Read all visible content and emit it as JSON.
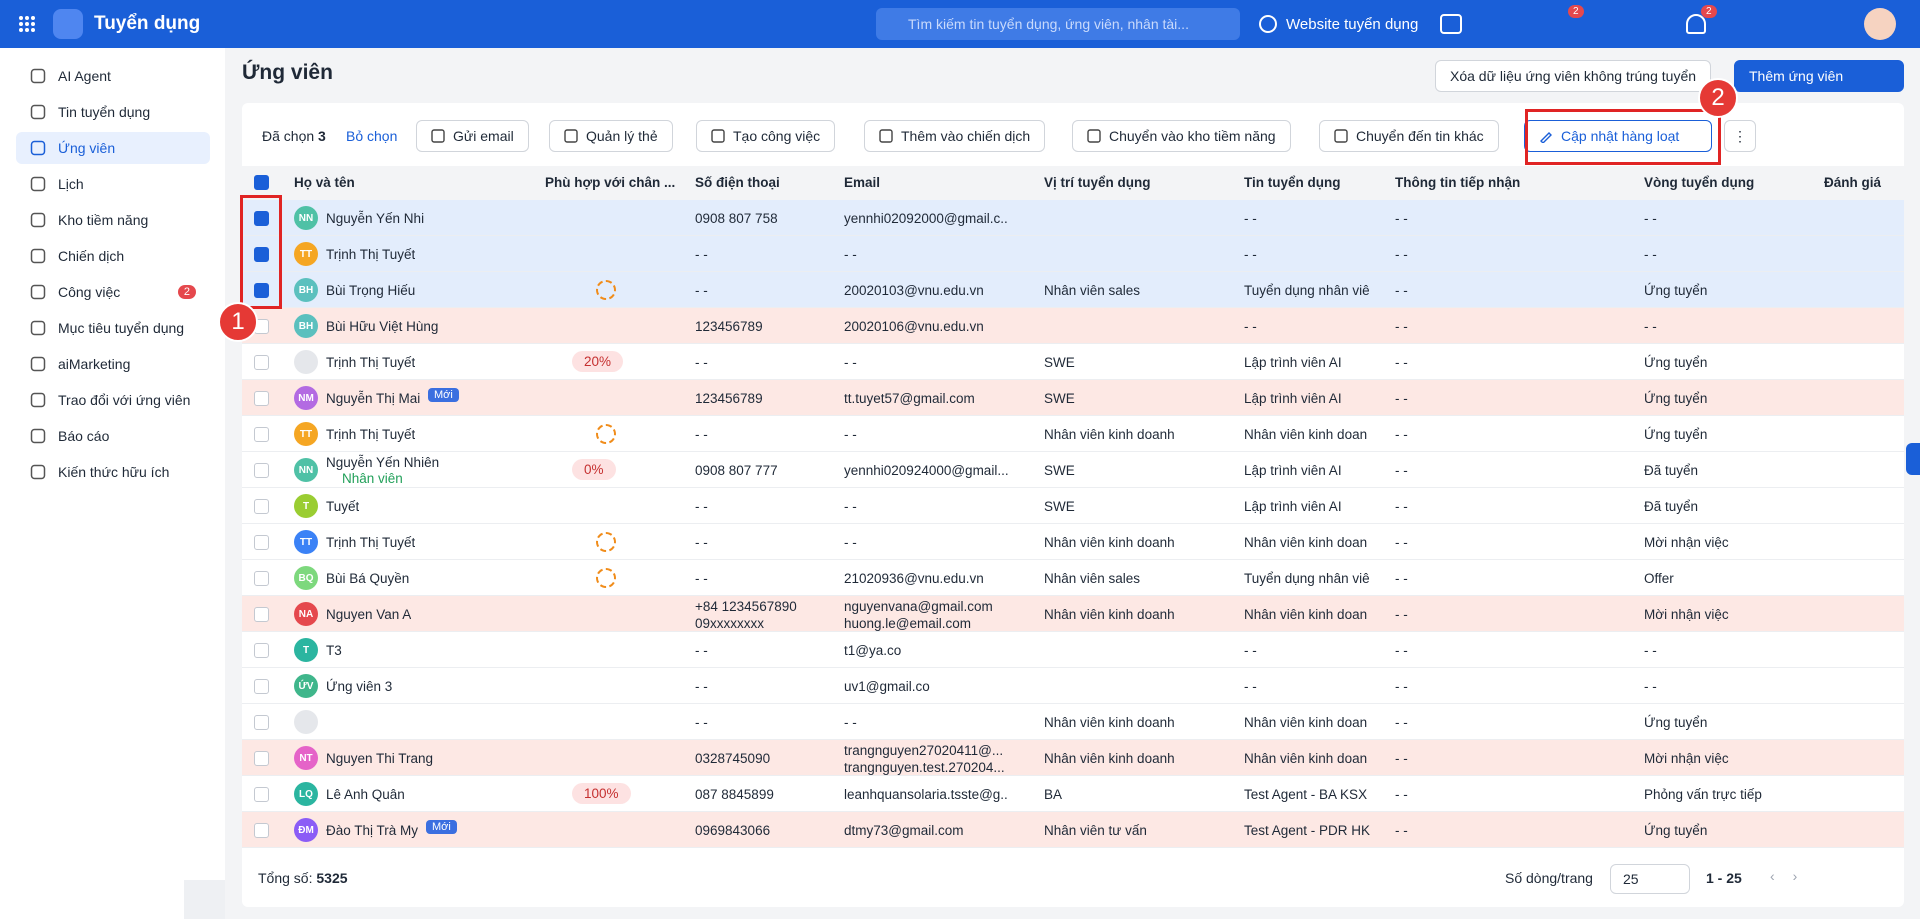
{
  "header": {
    "app_name": "Tuyển dụng",
    "search_placeholder": "Tìm kiếm tin tuyển dụng, ứng viên, nhân tài...",
    "website": "Website tuyển dụng",
    "cart_badge": "2",
    "notif_badge": "2"
  },
  "sidebar": {
    "items": [
      {
        "label": "AI Agent"
      },
      {
        "label": "Tin tuyển dụng"
      },
      {
        "label": "Ứng viên",
        "active": true
      },
      {
        "label": "Lịch"
      },
      {
        "label": "Kho tiềm năng"
      },
      {
        "label": "Chiến dịch"
      },
      {
        "label": "Công việc",
        "badge": "2"
      },
      {
        "label": "Mục tiêu tuyển dụng"
      },
      {
        "label": "aiMarketing"
      },
      {
        "label": "Trao đổi với ứng viên"
      },
      {
        "label": "Báo cáo"
      },
      {
        "label": "Kiến thức hữu ích"
      }
    ]
  },
  "page": {
    "title": "Ứng viên",
    "clear_button": "Xóa dữ liệu ứng viên không trúng tuyển",
    "add_button": "Thêm ứng viên"
  },
  "toolbar": {
    "selected_label": "Đã chọn",
    "selected_count": "3",
    "deselect": "Bỏ chọn",
    "actions": [
      "Gửi email",
      "Quản lý thẻ",
      "Tạo công việc",
      "Thêm vào chiến dịch",
      "Chuyển vào kho tiềm năng",
      "Chuyển đến tin khác"
    ],
    "bulk_update": "Cập nhật hàng loạt"
  },
  "annotations": [
    "1",
    "2"
  ],
  "table": {
    "columns": [
      "Họ và tên",
      "Phù hợp với chân ...",
      "Số điện thoại",
      "Email",
      "Vị trí tuyển dụng",
      "Tin tuyển dụng",
      "Thông tin tiếp nhận",
      "Vòng tuyển dụng",
      "Đánh giá"
    ],
    "rows": [
      {
        "avatar": "NN",
        "avatar_color": "#4fc1a6",
        "name": "Nguyễn Yến Nhi",
        "phone": [
          "0908 807 758"
        ],
        "email": [
          "yennhi02092000@gmail.c..."
        ],
        "job": "- -",
        "info": "- -",
        "round": "- -",
        "selected": true
      },
      {
        "avatar": "TT",
        "avatar_color": "#f5a623",
        "name": "Trịnh Thị Tuyết",
        "phone": [
          "- -"
        ],
        "email": [
          "- -"
        ],
        "job": "- -",
        "info": "- -",
        "round": "- -",
        "selected": true
      },
      {
        "avatar": "BH",
        "avatar_color": "#5bc0be",
        "name": "Bùi Trọng Hiếu",
        "match_icon": true,
        "phone": [
          "- -"
        ],
        "email": [
          "20020103@vnu.edu.vn"
        ],
        "position": "Nhân viên sales",
        "job": "Tuyển dụng nhân viê",
        "info": "- -",
        "round": "Ứng tuyển",
        "selected": true
      },
      {
        "avatar": "BH",
        "avatar_color": "#5bc0be",
        "name": "Bùi Hữu Việt Hùng",
        "phone": [
          "123456789"
        ],
        "email": [
          "20020106@vnu.edu.vn"
        ],
        "job": "- -",
        "info": "- -",
        "round": "- -",
        "highlight": true
      },
      {
        "avatar_photo": true,
        "name": "Trịnh Thị Tuyết",
        "match": "20%",
        "phone": [
          "- -"
        ],
        "email": [
          "- -"
        ],
        "position": "SWE",
        "job": "Lập trình viên AI",
        "info": "- -",
        "round": "Ứng tuyển"
      },
      {
        "avatar": "NM",
        "avatar_color": "#b36ae2",
        "name": "Nguyễn Thị Mai",
        "tag": "Mới",
        "phone": [
          "123456789"
        ],
        "email": [
          "tt.tuyet57@gmail.com"
        ],
        "position": "SWE",
        "job": "Lập trình viên AI",
        "info": "- -",
        "round": "Ứng tuyển",
        "highlight": true
      },
      {
        "avatar": "TT",
        "avatar_color": "#f5a623",
        "name": "Trịnh Thị Tuyết",
        "match_icon": true,
        "phone": [
          "- -"
        ],
        "email": [
          "- -"
        ],
        "position": "Nhân viên kinh doanh",
        "job": "Nhân viên kinh doan",
        "info": "- -",
        "round": "Ứng tuyển"
      },
      {
        "avatar": "NN",
        "avatar_color": "#4fc1a6",
        "name": "Nguyễn Yến Nhiên",
        "sub": "Nhân viên",
        "match": "0%",
        "phone": [
          "0908 807 777"
        ],
        "email": [
          "yennhi020924000@gmail..."
        ],
        "position": "SWE",
        "job": "Lập trình viên AI",
        "info": "- -",
        "round": "Đã tuyển"
      },
      {
        "avatar": "T",
        "avatar_color": "#9acd32",
        "name": "Tuyết",
        "phone": [
          "- -"
        ],
        "email": [
          "- -"
        ],
        "position": "SWE",
        "job": "Lập trình viên AI",
        "info": "- -",
        "round": "Đã tuyển"
      },
      {
        "avatar": "TT",
        "avatar_color": "#3b82f6",
        "name": "Trịnh Thị Tuyết",
        "match_icon": true,
        "phone": [
          "- -"
        ],
        "email": [
          "- -"
        ],
        "position": "Nhân viên kinh doanh",
        "job": "Nhân viên kinh doan",
        "info": "- -",
        "round": "Mời nhận việc"
      },
      {
        "avatar": "BQ",
        "avatar_color": "#7dd87d",
        "name": "Bùi Bá Quyền",
        "match_icon": true,
        "phone": [
          "- -"
        ],
        "email": [
          "21020936@vnu.edu.vn"
        ],
        "position": "Nhân viên sales",
        "job": "Tuyển dụng nhân viê",
        "info": "- -",
        "round": "Offer"
      },
      {
        "avatar": "NA",
        "avatar_color": "#e5484d",
        "name": "Nguyen Van A",
        "phone": [
          "+84 1234567890",
          "09xxxxxxxx"
        ],
        "email": [
          "nguyenvana@gmail.com",
          "huong.le@email.com"
        ],
        "position": "Nhân viên kinh doanh",
        "job": "Nhân viên kinh doan",
        "info": "- -",
        "round": "Mời nhận việc",
        "highlight": true
      },
      {
        "avatar": "T",
        "avatar_color": "#2bb5a0",
        "name": "T3",
        "phone": [
          "- -"
        ],
        "email": [
          "t1@ya.co"
        ],
        "job": "- -",
        "info": "- -",
        "round": "- -"
      },
      {
        "avatar": "ỨV",
        "avatar_color": "#3fb68b",
        "name": "Ứng viên 3",
        "phone": [
          "- -"
        ],
        "email": [
          "uv1@gmail.co"
        ],
        "job": "- -",
        "info": "- -",
        "round": "- -"
      },
      {
        "avatar_photo": true,
        "phone": [
          "- -"
        ],
        "email": [
          "- -"
        ],
        "position": "Nhân viên kinh doanh",
        "job": "Nhân viên kinh doan",
        "info": "- -",
        "round": "Ứng tuyển"
      },
      {
        "avatar": "NT",
        "avatar_color": "#e563c8",
        "name": "Nguyen Thi Trang",
        "phone": [
          "0328745090"
        ],
        "email": [
          "trangnguyen27020411@...",
          "trangnguyen.test.270204..."
        ],
        "position": "Nhân viên kinh doanh",
        "job": "Nhân viên kinh doan",
        "info": "- -",
        "round": "Mời nhận việc",
        "highlight": true
      },
      {
        "avatar": "LQ",
        "avatar_color": "#2bb5a0",
        "name": "Lê Anh Quân",
        "match": "100%",
        "phone": [
          "087 8845899"
        ],
        "email": [
          "leanhquansolaria.tsste@g..."
        ],
        "position": "BA",
        "job": "Test Agent - BA KSX",
        "info": "- -",
        "round": "Phỏng vấn trực tiếp"
      },
      {
        "avatar": "ĐM",
        "avatar_color": "#8b5cf6",
        "name": "Đào Thị Trà My",
        "tag": "Mới",
        "phone": [
          "0969843066"
        ],
        "email": [
          "dtmy73@gmail.com"
        ],
        "position": "Nhân viên tư vấn",
        "job": "Test Agent - PDR HK",
        "info": "- -",
        "round": "Ứng tuyển",
        "highlight": true
      }
    ]
  },
  "footer": {
    "total_label": "Tổng số:",
    "total": "5325",
    "rows_per_page_label": "Số dòng/trang",
    "rows_per_page": "25",
    "range": "1 - 25"
  }
}
